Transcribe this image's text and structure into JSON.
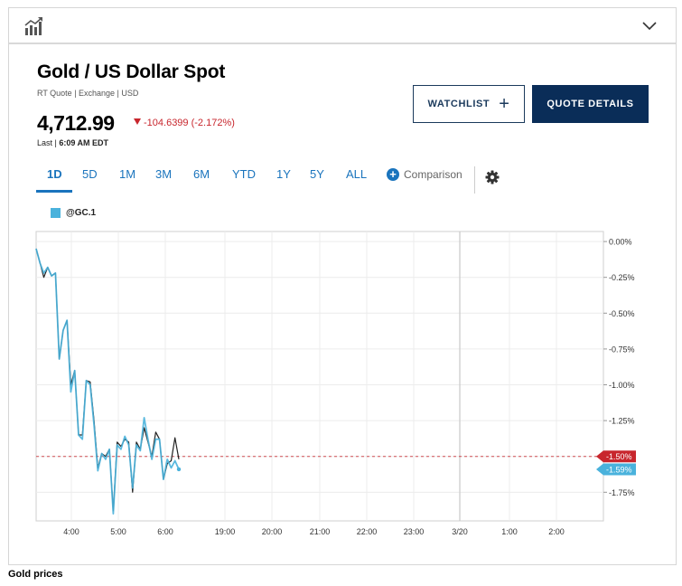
{
  "header": {
    "chart_icon": "chart-trend-icon",
    "collapse_icon": "chevron-down-icon"
  },
  "quote": {
    "title": "Gold / US Dollar Spot",
    "subtitle": "RT Quote | Exchange | USD",
    "price": "4,712.99",
    "change": "-104.6399 (-2.172%)",
    "last_label": "Last",
    "last_time": "6:09 AM EDT",
    "down_color": "#c8262d"
  },
  "buttons": {
    "watchlist": "WATCHLIST",
    "quote_details": "QUOTE DETAILS"
  },
  "tabs": {
    "items": [
      "1D",
      "5D",
      "1M",
      "3M",
      "6M",
      "YTD",
      "1Y",
      "5Y",
      "ALL"
    ],
    "active": "1D",
    "comparison": "Comparison"
  },
  "legend": {
    "symbol": "@GC.1",
    "color": "#4ab2dc"
  },
  "caption": "Gold prices",
  "chart_data": {
    "type": "line",
    "title": "",
    "xlabel": "",
    "ylabel": "",
    "y_unit": "%",
    "ylim": [
      -1.95,
      0.07
    ],
    "y_ticks": [
      0,
      -0.25,
      -0.5,
      -0.75,
      -1.0,
      -1.25,
      -1.5,
      -1.75
    ],
    "y_tick_labels": [
      "0.00%",
      "-0.25%",
      "-0.50%",
      "-0.75%",
      "-1.00%",
      "-1.25%",
      "-1.50%",
      "-1.75%"
    ],
    "x_ticks": [
      "4:00",
      "5:00",
      "6:00",
      "19:00",
      "20:00",
      "21:00",
      "22:00",
      "23:00",
      "3/20",
      "1:00",
      "2:00"
    ],
    "grid": true,
    "reference_line": {
      "value": -1.5,
      "label": "-1.50%",
      "color": "#c8262d"
    },
    "last_marker": {
      "value": -1.59,
      "label": "-1.59%",
      "color": "#4ab2dc"
    },
    "series": [
      {
        "color": "#222222",
        "values": [
          -0.05,
          -0.15,
          -0.25,
          -0.18,
          -0.24,
          -0.22,
          -0.82,
          -0.62,
          -0.55,
          -1.0,
          -0.9,
          -1.35,
          -1.35,
          -0.97,
          -0.98,
          -1.25,
          -1.58,
          -1.48,
          -1.5,
          -1.45,
          -1.88,
          -1.4,
          -1.43,
          -1.38,
          -1.4,
          -1.75,
          -1.4,
          -1.45,
          -1.3,
          -1.4,
          -1.5,
          -1.33,
          -1.38,
          -1.66,
          -1.55,
          -1.53,
          -1.37,
          -1.52
        ]
      },
      {
        "color": "#4ab2dc",
        "values": [
          -0.05,
          -0.15,
          -0.22,
          -0.18,
          -0.24,
          -0.22,
          -0.82,
          -0.62,
          -0.55,
          -1.05,
          -0.9,
          -1.35,
          -1.38,
          -0.97,
          -1.0,
          -1.28,
          -1.6,
          -1.48,
          -1.52,
          -1.45,
          -1.9,
          -1.42,
          -1.45,
          -1.36,
          -1.42,
          -1.72,
          -1.42,
          -1.46,
          -1.23,
          -1.38,
          -1.52,
          -1.38,
          -1.38,
          -1.66,
          -1.52,
          -1.58,
          -1.53,
          -1.59
        ]
      }
    ]
  }
}
